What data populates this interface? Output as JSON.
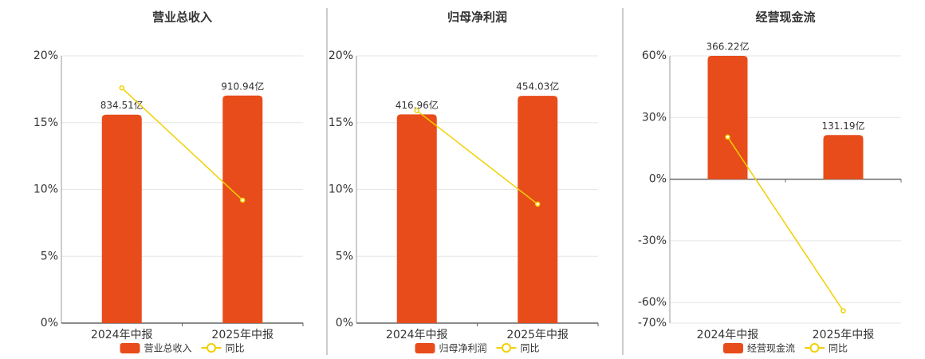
{
  "chart_data": [
    {
      "type": "bar",
      "title": "营业总收入",
      "categories": [
        "2024年中报",
        "2025年中报"
      ],
      "series": [
        {
          "name": "营业总收入",
          "type": "bar",
          "axis": "y2",
          "color": "#e84c1a",
          "values": [
            834.51,
            910.94
          ],
          "value_labels": [
            "834.51亿",
            "910.94亿"
          ]
        },
        {
          "name": "同比",
          "type": "line",
          "color": "#f2d000",
          "values": [
            17.6,
            9.2
          ]
        }
      ],
      "ylim": [
        0,
        20
      ],
      "yticks": [
        {
          "value": 0,
          "label": "0%"
        },
        {
          "value": 5,
          "label": "5%"
        },
        {
          "value": 10,
          "label": "10%"
        },
        {
          "value": 15,
          "label": "15%"
        },
        {
          "value": 20,
          "label": "20%"
        }
      ],
      "y2lim": [
        0,
        1070
      ],
      "grid": true
    },
    {
      "type": "bar",
      "title": "归母净利润",
      "categories": [
        "2024年中报",
        "2025年中报"
      ],
      "series": [
        {
          "name": "归母净利润",
          "type": "bar",
          "axis": "y2",
          "color": "#e84c1a",
          "values": [
            416.96,
            454.03
          ],
          "value_labels": [
            "416.96亿",
            "454.03亿"
          ]
        },
        {
          "name": "同比",
          "type": "line",
          "color": "#f2d000",
          "values": [
            15.9,
            8.9
          ]
        }
      ],
      "ylim": [
        0,
        20
      ],
      "yticks": [
        {
          "value": 0,
          "label": "0%"
        },
        {
          "value": 5,
          "label": "5%"
        },
        {
          "value": 10,
          "label": "10%"
        },
        {
          "value": 15,
          "label": "15%"
        },
        {
          "value": 20,
          "label": "20%"
        }
      ],
      "y2lim": [
        0,
        534
      ],
      "grid": true
    },
    {
      "type": "bar",
      "title": "经营现金流",
      "categories": [
        "2024年中报",
        "2025年中报"
      ],
      "series": [
        {
          "name": "经营现金流",
          "type": "bar",
          "axis": "y2",
          "color": "#e84c1a",
          "values": [
            366.22,
            131.19
          ],
          "value_labels": [
            "366.22亿",
            "131.19亿"
          ]
        },
        {
          "name": "同比",
          "type": "line",
          "color": "#f2d000",
          "values": [
            20.5,
            -64
          ]
        }
      ],
      "ylim": [
        -70,
        60
      ],
      "yticks": [
        {
          "value": 60,
          "label": "60%"
        },
        {
          "value": 30,
          "label": "30%"
        },
        {
          "value": 0,
          "label": "0%"
        },
        {
          "value": -30,
          "label": "-30%"
        },
        {
          "value": -60,
          "label": "-60%"
        },
        {
          "value": -70,
          "label": "-70%"
        }
      ],
      "y2lim": [
        -427,
        366.22
      ],
      "grid": true
    }
  ]
}
